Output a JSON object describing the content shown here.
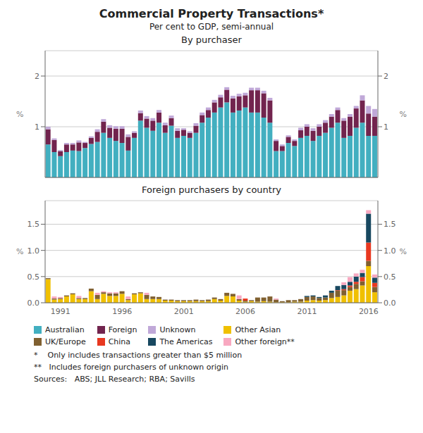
{
  "chart_data": [
    {
      "type": "bar",
      "stacked": true,
      "grid": true,
      "legend": "bottom",
      "tick_labels": "y",
      "title": "Commercial Property Transactions*",
      "subtitle": "Per cent to GDP, semi-annual",
      "annotations": [
        "By purchaser"
      ],
      "ylabel": "%",
      "y2label": "%",
      "ylim": [
        0,
        2.5
      ],
      "yticks": [
        0,
        1,
        2
      ],
      "y2lim": [
        0,
        2.5
      ],
      "y2ticks": [
        0,
        1,
        2
      ],
      "categories": [
        null,
        null,
        "1991",
        null,
        null,
        null,
        null,
        null,
        null,
        null,
        null,
        null,
        "1996",
        null,
        null,
        null,
        null,
        null,
        null,
        null,
        null,
        null,
        "2001",
        null,
        null,
        null,
        null,
        null,
        null,
        null,
        null,
        null,
        "2006",
        null,
        null,
        null,
        null,
        null,
        null,
        null,
        null,
        null,
        "2011",
        null,
        null,
        null,
        null,
        null,
        null,
        null,
        null,
        null,
        "2016",
        null
      ],
      "series": [
        {
          "name": "Australian",
          "color": "#42afc0",
          "values": [
            0.65,
            0.5,
            0.42,
            0.5,
            0.53,
            0.52,
            0.58,
            0.66,
            0.7,
            0.88,
            0.78,
            0.72,
            0.68,
            0.53,
            0.78,
            1.12,
            0.98,
            0.92,
            1.08,
            0.88,
            1.02,
            0.78,
            0.82,
            0.78,
            0.88,
            1.08,
            1.18,
            1.28,
            1.38,
            1.48,
            1.28,
            1.32,
            1.38,
            1.28,
            1.28,
            1.18,
            1.08,
            0.52,
            0.52,
            0.68,
            0.62,
            0.78,
            0.82,
            0.72,
            0.82,
            0.88,
            0.98,
            1.08,
            0.78,
            0.82,
            0.98,
            1.08,
            0.82,
            0.82
          ]
        },
        {
          "name": "Foreign",
          "color": "#72244e",
          "values": [
            0.3,
            0.24,
            0.1,
            0.15,
            0.12,
            0.17,
            0.1,
            0.12,
            0.2,
            0.22,
            0.2,
            0.24,
            0.28,
            0.27,
            0.1,
            0.15,
            0.18,
            0.2,
            0.2,
            0.15,
            0.15,
            0.14,
            0.12,
            0.1,
            0.14,
            0.15,
            0.15,
            0.2,
            0.2,
            0.25,
            0.28,
            0.28,
            0.24,
            0.44,
            0.44,
            0.48,
            0.44,
            0.2,
            0.1,
            0.12,
            0.1,
            0.15,
            0.18,
            0.2,
            0.18,
            0.2,
            0.22,
            0.25,
            0.34,
            0.38,
            0.38,
            0.44,
            0.44,
            0.38
          ]
        },
        {
          "name": "Unknown",
          "color": "#c0a8d8",
          "values": [
            0.05,
            0.03,
            0.02,
            0.03,
            0.03,
            0.04,
            0.02,
            0.03,
            0.05,
            0.05,
            0.05,
            0.05,
            0.05,
            0.05,
            0.03,
            0.05,
            0.05,
            0.05,
            0.05,
            0.05,
            0.05,
            0.05,
            0.03,
            0.03,
            0.05,
            0.05,
            0.05,
            0.05,
            0.05,
            0.05,
            0.05,
            0.05,
            0.05,
            0.05,
            0.05,
            0.05,
            0.05,
            0.03,
            0.03,
            0.03,
            0.03,
            0.05,
            0.05,
            0.05,
            0.05,
            0.05,
            0.05,
            0.05,
            0.05,
            0.05,
            0.05,
            0.1,
            0.15,
            0.15
          ]
        }
      ]
    },
    {
      "type": "bar",
      "stacked": true,
      "grid": true,
      "legend": "bottom",
      "title": "Foreign purchasers by country",
      "annotations": [
        "*    Only includes transactions greater than $5 million",
        "**   Includes foreign purchasers of unknown origin",
        "Sources:   ABS; JLL Research; RBA; Savills"
      ],
      "ylabel": "%",
      "y2label": "%",
      "ylim": [
        0,
        1.95
      ],
      "yticks": [
        {
          "value": 0,
          "label": "0.0"
        },
        0.5,
        {
          "value": 1,
          "label": "1.0"
        },
        1.5
      ],
      "y2lim": [
        0,
        1.95
      ],
      "y2ticks": [
        {
          "value": 0,
          "label": "0.0"
        },
        0.5,
        {
          "value": 1,
          "label": "1.0"
        },
        1.5
      ],
      "categories": [
        null,
        null,
        "1991",
        null,
        null,
        null,
        null,
        null,
        null,
        null,
        null,
        null,
        "1996",
        null,
        null,
        null,
        null,
        null,
        null,
        null,
        null,
        null,
        "2001",
        null,
        null,
        null,
        null,
        null,
        null,
        null,
        null,
        null,
        "2006",
        null,
        null,
        null,
        null,
        null,
        null,
        null,
        null,
        null,
        "2011",
        null,
        null,
        null,
        null,
        null,
        null,
        null,
        null,
        null,
        "2016",
        null
      ],
      "series": [
        {
          "name": "Other Asian",
          "color": "#f0c000",
          "values": [
            0.45,
            0.06,
            0.07,
            0.12,
            0.16,
            0.07,
            0.07,
            0.22,
            0.07,
            0.17,
            0.13,
            0.13,
            0.17,
            0.05,
            0.16,
            0.18,
            0.07,
            0.07,
            0.07,
            0.04,
            0.04,
            0.03,
            0.03,
            0.03,
            0.03,
            0.03,
            0.03,
            0.07,
            0.04,
            0.13,
            0.12,
            0.04,
            0.02,
            0.03,
            0.02,
            0.03,
            0.02,
            0.01,
            0.01,
            0.01,
            0.02,
            0.02,
            0.04,
            0.05,
            0.04,
            0.05,
            0.09,
            0.11,
            0.14,
            0.23,
            0.26,
            0.33,
            0.7,
            0.2
          ]
        },
        {
          "name": "UK/Europe",
          "color": "#806030",
          "values": [
            0.02,
            0.02,
            0.02,
            0.02,
            0.02,
            0.02,
            0.02,
            0.05,
            0.08,
            0.03,
            0.05,
            0.05,
            0.05,
            0.02,
            0.02,
            0.02,
            0.08,
            0.05,
            0.04,
            0.02,
            0.02,
            0.02,
            0.02,
            0.02,
            0.03,
            0.02,
            0.03,
            0.03,
            0.03,
            0.06,
            0.05,
            0.03,
            0.02,
            0.02,
            0.08,
            0.07,
            0.1,
            0.05,
            0.02,
            0.04,
            0.03,
            0.05,
            0.07,
            0.07,
            0.05,
            0.05,
            0.1,
            0.12,
            0.1,
            0.07,
            0.1,
            0.08,
            0.1,
            0.1
          ]
        },
        {
          "name": "China",
          "color": "#e83820",
          "values": [
            0.0,
            0.0,
            0.0,
            0.0,
            0.0,
            0.0,
            0.0,
            0.0,
            0.0,
            0.0,
            0.0,
            0.0,
            0.0,
            0.0,
            0.0,
            0.0,
            0.0,
            0.0,
            0.0,
            0.0,
            0.0,
            0.0,
            0.0,
            0.0,
            0.0,
            0.0,
            0.0,
            0.0,
            0.0,
            0.0,
            0.0,
            0.0,
            0.04,
            0.0,
            0.0,
            0.0,
            0.0,
            0.0,
            0.0,
            0.0,
            0.0,
            0.0,
            0.0,
            0.0,
            0.0,
            0.0,
            0.0,
            0.01,
            0.02,
            0.03,
            0.04,
            0.08,
            0.35,
            0.08
          ]
        },
        {
          "name": "The Americas",
          "color": "#184860",
          "values": [
            0.0,
            0.0,
            0.0,
            0.0,
            0.0,
            0.0,
            0.0,
            0.0,
            0.0,
            0.0,
            0.0,
            0.0,
            0.0,
            0.0,
            0.0,
            0.0,
            0.0,
            0.0,
            0.0,
            0.0,
            0.0,
            0.0,
            0.0,
            0.0,
            0.0,
            0.0,
            0.0,
            0.0,
            0.0,
            0.0,
            0.0,
            0.0,
            0.0,
            0.0,
            0.0,
            0.0,
            0.0,
            0.0,
            0.0,
            0.0,
            0.0,
            0.0,
            0.02,
            0.02,
            0.02,
            0.04,
            0.04,
            0.08,
            0.08,
            0.07,
            0.1,
            0.08,
            0.55,
            0.1
          ]
        },
        {
          "name": "Other foreign**",
          "color": "#f8a8c0",
          "values": [
            0.0,
            0.04,
            0.02,
            0.0,
            0.0,
            0.04,
            0.0,
            0.0,
            0.04,
            0.02,
            0.02,
            0.02,
            0.0,
            0.05,
            0.0,
            0.0,
            0.04,
            0.0,
            0.0,
            0.0,
            0.0,
            0.0,
            0.0,
            0.0,
            0.0,
            0.0,
            0.0,
            0.0,
            0.0,
            0.0,
            0.0,
            0.07,
            0.0,
            0.0,
            0.0,
            0.0,
            0.0,
            0.02,
            0.0,
            0.0,
            0.0,
            0.0,
            0.0,
            0.0,
            0.0,
            0.0,
            0.0,
            0.0,
            0.05,
            0.09,
            0.06,
            0.06,
            0.07,
            0.06
          ]
        }
      ]
    }
  ]
}
